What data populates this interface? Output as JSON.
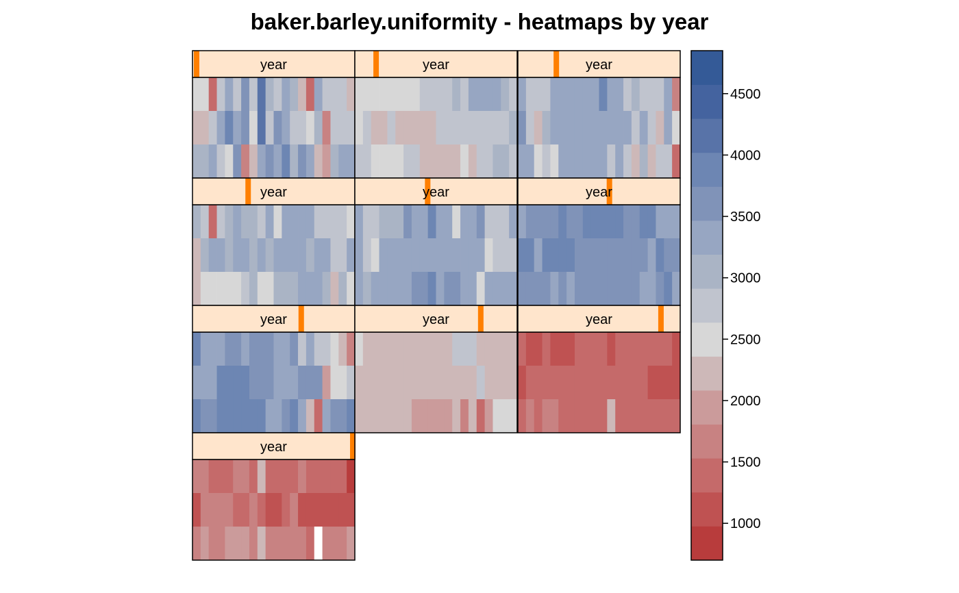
{
  "chart_data": {
    "type": "heatmap",
    "title": "baker.barley.uniformity - heatmaps by year",
    "strip_label": "year",
    "panel_count": 10,
    "panels": [
      {
        "year_index": 1,
        "level": 0.0,
        "cells": [
          [
            2.6,
            2.5,
            1.3,
            2.9,
            3.4,
            2.9,
            3.6,
            2.9,
            4.1,
            3.0,
            2.9,
            3.2,
            3.0,
            2.2,
            1.5,
            3.2,
            2.8,
            2.8,
            2.8,
            2.2
          ],
          [
            2.1,
            2.1,
            2.9,
            3.2,
            3.8,
            3.4,
            3.5,
            2.6,
            4.2,
            2.7,
            3.7,
            3.3,
            2.7,
            2.8,
            2.4,
            3.0,
            1.8,
            2.9,
            2.9,
            2.9
          ],
          [
            3.0,
            3.0,
            3.2,
            2.9,
            2.4,
            3.6,
            1.7,
            2.2,
            3.3,
            3.5,
            3.3,
            3.9,
            3.1,
            3.7,
            3.2,
            2.2,
            1.9,
            3.1,
            3.3,
            3.2
          ]
        ]
      },
      {
        "year_index": 2,
        "level": 0.11,
        "cells": [
          [
            2.6,
            2.4,
            2.4,
            2.4,
            2.4,
            2.6,
            2.4,
            2.4,
            2.8,
            2.8,
            2.8,
            2.8,
            3.0,
            2.9,
            3.2,
            3.2,
            3.2,
            3.2,
            3.1,
            2.8
          ],
          [
            2.5,
            2.8,
            2.2,
            2.2,
            2.8,
            2.2,
            2.2,
            2.2,
            2.2,
            2.2,
            2.8,
            2.8,
            2.8,
            2.8,
            2.8,
            2.8,
            2.8,
            2.8,
            2.8,
            3.0
          ],
          [
            2.9,
            2.8,
            2.6,
            2.4,
            2.4,
            2.4,
            2.8,
            2.8,
            2.2,
            2.2,
            2.2,
            2.2,
            2.2,
            2.5,
            2.2,
            2.8,
            2.8,
            3.0,
            3.0,
            2.9
          ]
        ]
      },
      {
        "year_index": 3,
        "level": 0.22,
        "cells": [
          [
            3.2,
            2.9,
            2.8,
            2.8,
            3.3,
            3.4,
            3.4,
            3.4,
            3.4,
            3.4,
            3.8,
            3.4,
            3.2,
            2.8,
            3.0,
            2.8,
            2.8,
            2.8,
            3.2,
            1.8
          ],
          [
            3.5,
            2.9,
            2.1,
            3.0,
            3.4,
            3.4,
            3.4,
            3.4,
            3.4,
            3.4,
            3.4,
            3.4,
            3.4,
            3.2,
            2.8,
            3.2,
            2.8,
            2.3,
            3.2,
            2.6
          ],
          [
            3.2,
            3.2,
            2.4,
            2.9,
            2.4,
            3.2,
            3.2,
            3.2,
            3.2,
            3.2,
            3.2,
            2.9,
            3.2,
            2.8,
            2.3,
            3.0,
            2.2,
            2.8,
            2.8,
            1.3
          ]
        ]
      },
      {
        "year_index": 4,
        "level": 0.33,
        "cells": [
          [
            3.0,
            2.8,
            1.4,
            2.8,
            3.0,
            3.2,
            3.0,
            3.1,
            2.9,
            3.2,
            2.4,
            3.2,
            3.2,
            3.2,
            3.2,
            2.8,
            2.8,
            2.8,
            2.8,
            2.4
          ],
          [
            2.3,
            3.0,
            3.2,
            3.4,
            3.0,
            3.2,
            3.2,
            3.0,
            3.4,
            3.0,
            3.4,
            3.2,
            3.2,
            3.2,
            3.0,
            3.2,
            3.2,
            2.9,
            2.9,
            3.2
          ],
          [
            2.1,
            2.4,
            2.4,
            2.4,
            2.4,
            2.4,
            2.8,
            3.0,
            2.5,
            2.5,
            3.0,
            3.0,
            3.0,
            3.2,
            3.2,
            3.2,
            3.1,
            2.1,
            3.0,
            2.4
          ]
        ]
      },
      {
        "year_index": 5,
        "level": 0.44,
        "cells": [
          [
            3.2,
            2.8,
            2.8,
            3.0,
            3.0,
            3.0,
            3.5,
            3.4,
            3.4,
            3.8,
            3.3,
            3.3,
            2.4,
            3.3,
            3.3,
            3.5,
            2.9,
            2.9,
            2.9,
            3.4
          ],
          [
            3.3,
            2.9,
            2.4,
            3.3,
            3.3,
            3.4,
            3.4,
            3.4,
            3.4,
            3.4,
            3.4,
            3.2,
            3.2,
            3.4,
            3.2,
            3.4,
            2.5,
            2.8,
            2.8,
            2.8
          ],
          [
            3.4,
            3.0,
            3.3,
            3.3,
            3.3,
            3.4,
            3.4,
            3.5,
            3.6,
            4.0,
            3.3,
            3.5,
            3.5,
            3.2,
            3.2,
            2.4,
            3.4,
            3.4,
            3.4,
            3.4
          ]
        ]
      },
      {
        "year_index": 6,
        "level": 0.56,
        "cells": [
          [
            3.3,
            3.6,
            3.6,
            3.6,
            3.6,
            3.8,
            3.7,
            3.7,
            3.9,
            4.0,
            4.0,
            4.0,
            4.0,
            3.6,
            3.6,
            3.8,
            3.8,
            3.4,
            3.4,
            3.4
          ],
          [
            3.9,
            3.9,
            3.4,
            3.8,
            3.8,
            3.8,
            3.8,
            3.6,
            3.6,
            3.7,
            3.7,
            3.7,
            3.7,
            3.7,
            3.7,
            3.7,
            3.3,
            4.0,
            3.5,
            3.5
          ],
          [
            3.5,
            3.5,
            3.7,
            3.7,
            3.4,
            3.6,
            3.4,
            3.7,
            3.5,
            3.5,
            3.6,
            3.6,
            3.6,
            3.6,
            3.6,
            3.4,
            3.4,
            3.6,
            3.9,
            3.3
          ]
        ]
      },
      {
        "year_index": 7,
        "level": 0.67,
        "cells": [
          [
            3.9,
            3.4,
            3.4,
            3.4,
            3.6,
            3.6,
            3.4,
            3.7,
            3.7,
            3.5,
            3.4,
            3.4,
            3.5,
            2.9,
            3.3,
            2.8,
            2.8,
            2.6,
            2.2,
            1.6
          ],
          [
            3.4,
            3.4,
            3.4,
            3.8,
            3.8,
            3.8,
            4.0,
            3.5,
            3.5,
            3.5,
            3.4,
            3.4,
            3.4,
            3.7,
            3.7,
            3.6,
            2.0,
            2.4,
            2.4,
            2.8
          ],
          [
            4.0,
            3.6,
            3.6,
            3.8,
            3.8,
            3.8,
            3.8,
            3.8,
            3.8,
            3.2,
            3.2,
            3.6,
            3.8,
            3.2,
            2.3,
            1.4,
            3.2,
            3.5,
            3.5,
            3.9
          ]
        ]
      },
      {
        "year_index": 8,
        "level": 0.78,
        "cells": [
          [
            2.5,
            2.3,
            2.3,
            2.3,
            2.3,
            2.3,
            2.3,
            2.3,
            2.3,
            2.3,
            2.3,
            2.3,
            2.7,
            2.7,
            2.7,
            2.3,
            2.3,
            2.3,
            2.3,
            2.3
          ],
          [
            2.3,
            2.2,
            2.2,
            2.2,
            2.2,
            2.2,
            2.2,
            2.2,
            2.2,
            2.2,
            2.2,
            2.2,
            2.2,
            2.2,
            2.2,
            2.8,
            2.3,
            2.3,
            2.2,
            2.2
          ],
          [
            2.3,
            2.3,
            2.3,
            2.3,
            2.3,
            2.3,
            2.3,
            1.9,
            1.9,
            1.9,
            1.9,
            1.9,
            2.2,
            1.8,
            2.1,
            1.5,
            1.9,
            2.6,
            2.6,
            2.6
          ]
        ]
      },
      {
        "year_index": 9,
        "level": 0.89,
        "cells": [
          [
            1.4,
            1.1,
            1.1,
            1.4,
            1.2,
            1.2,
            1.2,
            1.5,
            1.5,
            1.5,
            1.5,
            1.2,
            1.5,
            1.5,
            1.5,
            1.5,
            1.5,
            1.5,
            1.5,
            1.2
          ],
          [
            1.2,
            1.4,
            1.4,
            1.4,
            1.4,
            1.4,
            1.4,
            1.4,
            1.4,
            1.4,
            1.4,
            1.4,
            1.4,
            1.4,
            1.4,
            1.4,
            1.2,
            1.2,
            1.2,
            1.2
          ],
          [
            1.5,
            1.8,
            1.4,
            1.6,
            1.8,
            1.5,
            1.5,
            1.5,
            1.5,
            1.5,
            1.5,
            2.2,
            1.5,
            1.5,
            1.5,
            1.5,
            1.5,
            1.5,
            1.5,
            1.5
          ]
        ]
      },
      {
        "year_index": 10,
        "level": 1.0,
        "cells": [
          [
            1.8,
            1.8,
            1.3,
            1.3,
            1.3,
            1.6,
            1.6,
            1.3,
            2.2,
            1.3,
            1.3,
            1.3,
            1.3,
            1.8,
            1.3,
            1.3,
            1.3,
            1.3,
            1.3,
            0.9
          ],
          [
            1.1,
            1.8,
            1.6,
            1.6,
            1.6,
            1.3,
            1.3,
            1.6,
            1.3,
            1.1,
            1.1,
            1.5,
            1.8,
            1.1,
            1.1,
            1.1,
            1.1,
            1.1,
            1.1,
            1.1
          ],
          [
            1.6,
            2.0,
            1.6,
            1.6,
            2.0,
            2.0,
            2.0,
            1.8,
            2.2,
            1.6,
            1.6,
            1.6,
            1.6,
            1.8,
            1.4,
            0.0,
            1.6,
            1.6,
            1.6,
            2.0
          ]
        ]
      }
    ],
    "value_units": "thousands",
    "colorbar": {
      "ticks": [
        1000,
        1500,
        2000,
        2500,
        3000,
        3500,
        4000,
        4500
      ],
      "tick_labels": [
        "1000",
        "1500",
        "2000",
        "2500",
        "3000",
        "3500",
        "4000",
        "4500"
      ],
      "range": [
        700,
        4850
      ],
      "colors": [
        "#b83c3c",
        "#bf5252",
        "#c56a6a",
        "#c88282",
        "#cb9b9b",
        "#cdb8b8",
        "#d7d7d7",
        "#c0c4ce",
        "#aab4c5",
        "#97a6c2",
        "#8093b8",
        "#6d86b3",
        "#5873a8",
        "#44639f",
        "#345a97"
      ]
    },
    "grid": false,
    "legend": "right"
  }
}
